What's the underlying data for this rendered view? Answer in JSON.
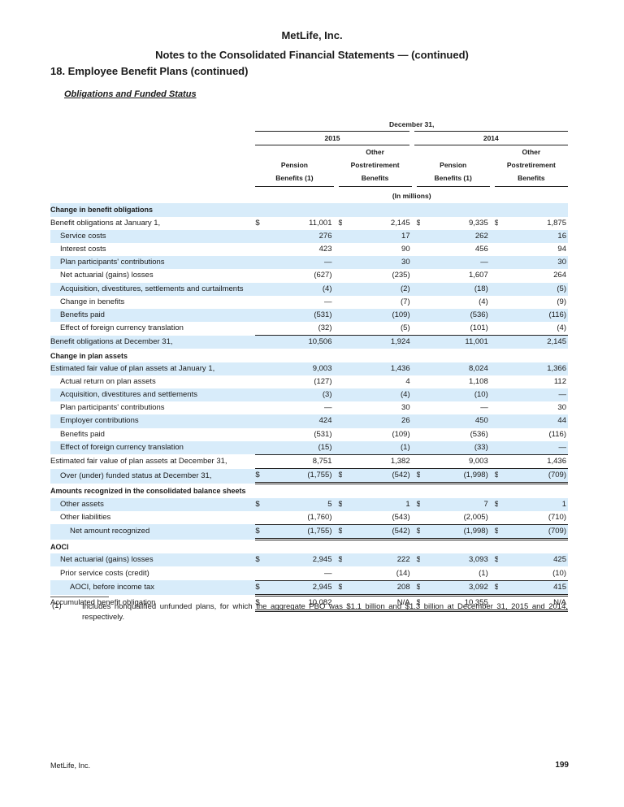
{
  "header": {
    "company": "MetLife, Inc.",
    "subtitle": "Notes to the Consolidated Financial Statements — (continued)",
    "section": "18. Employee Benefit Plans (continued)",
    "subsection": "Obligations and Funded Status"
  },
  "table": {
    "date_header": "December 31,",
    "years": [
      "2015",
      "2014"
    ],
    "columns": [
      "Pension Benefits (1)",
      "Other Postretirement Benefits",
      "Pension Benefits (1)",
      "Other Postretirement Benefits"
    ],
    "columns_lines": [
      [
        "Pension",
        "Benefits (1)"
      ],
      [
        "Other",
        "Postretirement",
        "Benefits"
      ],
      [
        "Pension",
        "Benefits (1)"
      ],
      [
        "Other",
        "Postretirement",
        "Benefits"
      ]
    ],
    "units": "(In millions)",
    "rows": [
      {
        "label": "Change in benefit obligations",
        "type": "section",
        "shaded": true
      },
      {
        "label": "Benefit obligations at January 1,",
        "indent": 0,
        "shaded": false,
        "dollar": true,
        "values": [
          "11,001",
          "2,145",
          "9,335",
          "1,875"
        ]
      },
      {
        "label": "Service costs",
        "indent": 1,
        "shaded": true,
        "values": [
          "276",
          "17",
          "262",
          "16"
        ]
      },
      {
        "label": "Interest costs",
        "indent": 1,
        "shaded": false,
        "values": [
          "423",
          "90",
          "456",
          "94"
        ]
      },
      {
        "label": "Plan participants' contributions",
        "indent": 1,
        "shaded": true,
        "values": [
          "—",
          "30",
          "—",
          "30"
        ]
      },
      {
        "label": "Net actuarial (gains) losses",
        "indent": 1,
        "shaded": false,
        "values": [
          "(627)",
          "(235)",
          "1,607",
          "264"
        ]
      },
      {
        "label": "Acquisition, divestitures, settlements and curtailments",
        "indent": 1,
        "shaded": true,
        "values": [
          "(4)",
          "(2)",
          "(18)",
          "(5)"
        ]
      },
      {
        "label": "Change in benefits",
        "indent": 1,
        "shaded": false,
        "values": [
          "—",
          "(7)",
          "(4)",
          "(9)"
        ]
      },
      {
        "label": "Benefits paid",
        "indent": 1,
        "shaded": true,
        "values": [
          "(531)",
          "(109)",
          "(536)",
          "(116)"
        ]
      },
      {
        "label": "Effect of foreign currency translation",
        "indent": 1,
        "shaded": false,
        "values": [
          "(32)",
          "(5)",
          "(101)",
          "(4)"
        ]
      },
      {
        "label": "Benefit obligations at December 31,",
        "indent": 0,
        "shaded": true,
        "rule": "top",
        "values": [
          "10,506",
          "1,924",
          "11,001",
          "2,145"
        ]
      },
      {
        "label": "Change in plan assets",
        "type": "section",
        "shaded": false
      },
      {
        "label": "Estimated fair value of plan assets at January 1,",
        "indent": 0,
        "shaded": true,
        "values": [
          "9,003",
          "1,436",
          "8,024",
          "1,366"
        ]
      },
      {
        "label": "Actual return on plan assets",
        "indent": 1,
        "shaded": false,
        "values": [
          "(127)",
          "4",
          "1,108",
          "112"
        ]
      },
      {
        "label": "Acquisition, divestitures and settlements",
        "indent": 1,
        "shaded": true,
        "values": [
          "(3)",
          "(4)",
          "(10)",
          "—"
        ]
      },
      {
        "label": "Plan participants' contributions",
        "indent": 1,
        "shaded": false,
        "values": [
          "—",
          "30",
          "—",
          "30"
        ]
      },
      {
        "label": "Employer contributions",
        "indent": 1,
        "shaded": true,
        "values": [
          "424",
          "26",
          "450",
          "44"
        ]
      },
      {
        "label": "Benefits paid",
        "indent": 1,
        "shaded": false,
        "values": [
          "(531)",
          "(109)",
          "(536)",
          "(116)"
        ]
      },
      {
        "label": "Effect of foreign currency translation",
        "indent": 1,
        "shaded": true,
        "values": [
          "(15)",
          "(1)",
          "(33)",
          "—"
        ]
      },
      {
        "label": "Estimated fair value of plan assets at December 31,",
        "indent": 0,
        "shaded": false,
        "rule": "top",
        "values": [
          "8,751",
          "1,382",
          "9,003",
          "1,436"
        ]
      },
      {
        "label": "Over (under) funded status at December 31,",
        "indent": 1,
        "shaded": true,
        "dollar": true,
        "rule": "top-dbl",
        "values": [
          "(1,755)",
          "(542)",
          "(1,998)",
          "(709)"
        ]
      },
      {
        "label": "Amounts recognized in the consolidated balance sheets",
        "type": "section",
        "shaded": false
      },
      {
        "label": "Other assets",
        "indent": 1,
        "shaded": true,
        "dollar": true,
        "values": [
          "5",
          "1",
          "7",
          "1"
        ]
      },
      {
        "label": "Other liabilities",
        "indent": 1,
        "shaded": false,
        "values": [
          "(1,760)",
          "(543)",
          "(2,005)",
          "(710)"
        ]
      },
      {
        "label": "Net amount recognized",
        "indent": 2,
        "shaded": true,
        "dollar": true,
        "rule": "top-dbl",
        "values": [
          "(1,755)",
          "(542)",
          "(1,998)",
          "(709)"
        ]
      },
      {
        "label": "AOCI",
        "type": "section",
        "shaded": false
      },
      {
        "label": "Net actuarial (gains) losses",
        "indent": 1,
        "shaded": true,
        "dollar": true,
        "values": [
          "2,945",
          "222",
          "3,093",
          "425"
        ]
      },
      {
        "label": "Prior service costs (credit)",
        "indent": 1,
        "shaded": false,
        "values": [
          "—",
          "(14)",
          "(1)",
          "(10)"
        ]
      },
      {
        "label": "AOCI, before income tax",
        "indent": 2,
        "shaded": true,
        "dollar": true,
        "rule": "top-dbl",
        "values": [
          "2,945",
          "208",
          "3,092",
          "415"
        ]
      },
      {
        "label": "Accumulated benefit obligation",
        "indent": 0,
        "shaded": false,
        "dollar_cols": [
          0,
          2
        ],
        "rule": "top-dbl",
        "values": [
          "10,082",
          "N/A",
          "10,355",
          "N/A"
        ]
      }
    ]
  },
  "footnote": {
    "mark": "(1)",
    "text": "Includes nonqualified unfunded plans, for which the aggregate PBO was $1.1 billion and $1.3 billion at December 31, 2015 and 2014, respectively."
  },
  "footer": {
    "left": "MetLife, Inc.",
    "page": "199"
  },
  "colors": {
    "shade": "#d8ecfa",
    "rule": "#222222"
  }
}
